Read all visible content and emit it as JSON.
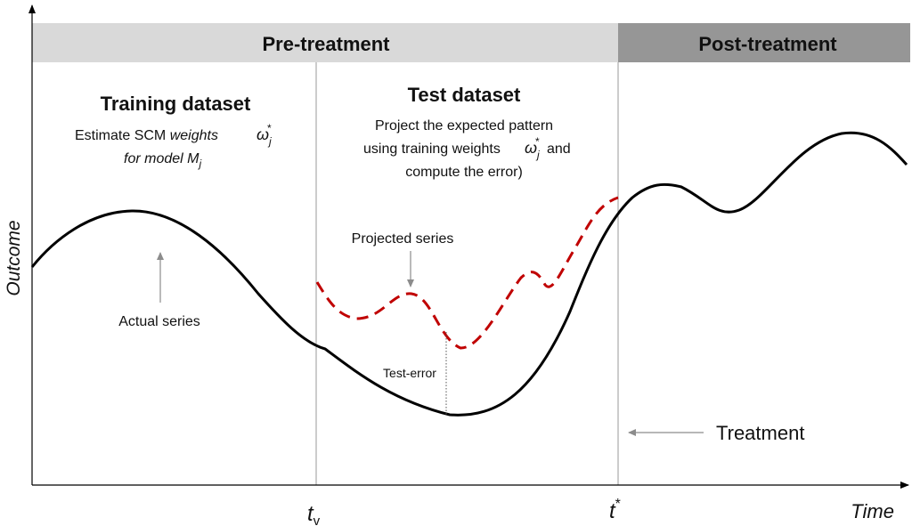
{
  "diagram": {
    "axes": {
      "y_label": "Outcome",
      "x_label": "Time",
      "tick_tv_main": "t",
      "tick_tv_sub": "v",
      "tick_tstar_main": "t",
      "tick_tstar_sup": "*"
    },
    "bands": {
      "pre_treatment": "Pre-treatment",
      "post_treatment": "Post-treatment",
      "pre_color": "#d9d9d9",
      "post_color": "#969696"
    },
    "training": {
      "title": "Training dataset",
      "line1_prefix": "Estimate SCM ",
      "line1_italic": "weights",
      "omega": "ω",
      "omega_sub": "j",
      "omega_sup": "*",
      "line2_italic": "for model M",
      "line2_sub": "j"
    },
    "test": {
      "title": "Test dataset",
      "line1": "Project the expected pattern",
      "line2_prefix": "using training weights",
      "omega": "ω",
      "omega_sub": "j",
      "omega_sup": "*",
      "line2_suffix": "and",
      "line3": "compute the error)"
    },
    "annotations": {
      "projected_series": "Projected series",
      "actual_series": "Actual series",
      "test_error": "Test-error",
      "treatment": "Treatment"
    },
    "colors": {
      "actual_series": "#000000",
      "projected_series": "#c00000",
      "arrow": "#8c8c8c"
    }
  }
}
